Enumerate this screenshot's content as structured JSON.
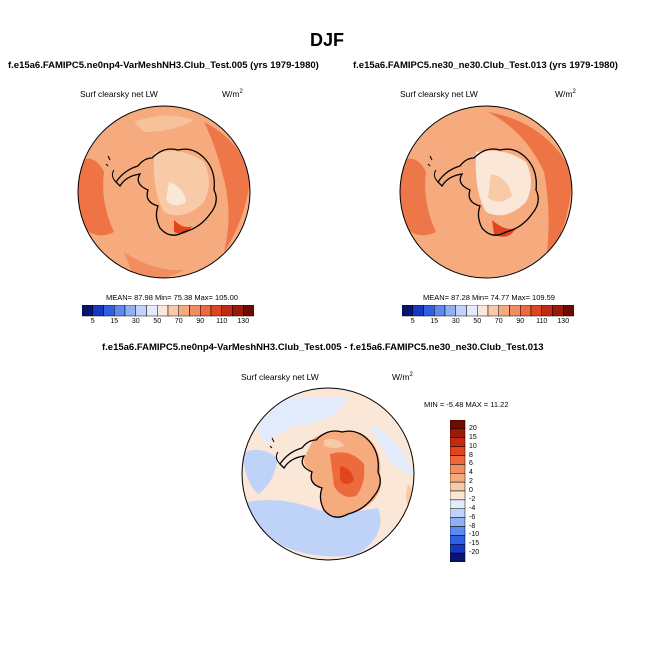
{
  "title": "DJF",
  "panels": [
    {
      "case": "f.e15a6.FAMIPC5.ne0np4-VarMeshNH3.Club_Test.005 (yrs 1979-1980)",
      "variable": "Surf clearsky net LW",
      "units_base": "W/m",
      "units_exp": "2",
      "stats": "MEAN=  87.98  Min=  75.38  Max=  105.00"
    },
    {
      "case": "f.e15a6.FAMIPC5.ne30_ne30.Club_Test.013 (yrs 1979-1980)",
      "variable": "Surf clearsky net LW",
      "units_base": "W/m",
      "units_exp": "2",
      "stats": "MEAN=  87.28  Min=  74.77  Max=  109.59"
    }
  ],
  "diff": {
    "case": "f.e15a6.FAMIPC5.ne0np4-VarMeshNH3.Club_Test.005 - f.e15a6.FAMIPC5.ne30_ne30.Club_Test.013",
    "variable": "Surf clearsky net LW",
    "units_base": "W/m",
    "units_exp": "2",
    "stats": "MIN =  -5.48  MAX =  11.22"
  },
  "colorbar_h": {
    "labels": [
      "5",
      "15",
      "30",
      "50",
      "70",
      "90",
      "110",
      "130"
    ],
    "colors": [
      "#08146e",
      "#1537c4",
      "#2f5fe3",
      "#5e89ef",
      "#8fb1f4",
      "#bfd3f8",
      "#e2ebfb",
      "#fbe7d8",
      "#f8caa7",
      "#f5ab7e",
      "#f18d5e",
      "#ec6a3c",
      "#e0451f",
      "#c42a10",
      "#9e1a08",
      "#6f0c02"
    ]
  },
  "colorbar_v": {
    "labels": [
      "20",
      "15",
      "10",
      "8",
      "6",
      "4",
      "2",
      "0",
      "-2",
      "-4",
      "-6",
      "-8",
      "-10",
      "-15",
      "-20"
    ],
    "colors": [
      "#6f0c02",
      "#9e1a08",
      "#c42a10",
      "#e0451f",
      "#ec6a3c",
      "#f18d5e",
      "#f5ab7e",
      "#f8caa7",
      "#fbe7d8",
      "#e2ebfb",
      "#bfd3f8",
      "#8fb1f4",
      "#5e89ef",
      "#2f5fe3",
      "#1537c4",
      "#08146e"
    ]
  }
}
